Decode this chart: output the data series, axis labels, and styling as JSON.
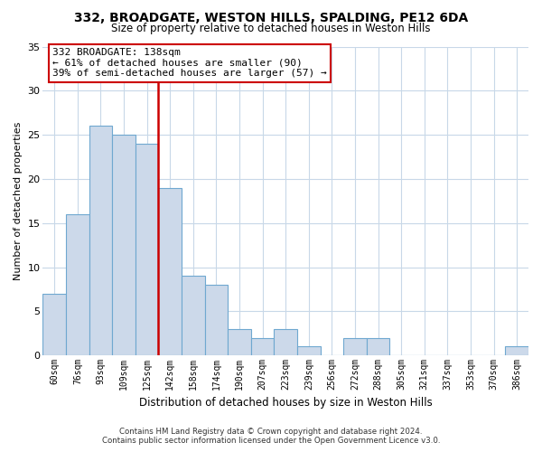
{
  "title1": "332, BROADGATE, WESTON HILLS, SPALDING, PE12 6DA",
  "title2": "Size of property relative to detached houses in Weston Hills",
  "xlabel": "Distribution of detached houses by size in Weston Hills",
  "ylabel": "Number of detached properties",
  "bin_labels": [
    "60sqm",
    "76sqm",
    "93sqm",
    "109sqm",
    "125sqm",
    "142sqm",
    "158sqm",
    "174sqm",
    "190sqm",
    "207sqm",
    "223sqm",
    "239sqm",
    "256sqm",
    "272sqm",
    "288sqm",
    "305sqm",
    "321sqm",
    "337sqm",
    "353sqm",
    "370sqm",
    "386sqm"
  ],
  "bar_heights": [
    7,
    16,
    26,
    25,
    24,
    19,
    9,
    8,
    3,
    2,
    3,
    1,
    0,
    2,
    2,
    0,
    0,
    0,
    0,
    0,
    1
  ],
  "bar_color": "#ccd9ea",
  "bar_edge_color": "#6fa8d0",
  "vline_color": "#cc0000",
  "ylim": [
    0,
    35
  ],
  "yticks": [
    0,
    5,
    10,
    15,
    20,
    25,
    30,
    35
  ],
  "annotation_title": "332 BROADGATE: 138sqm",
  "annotation_line1": "← 61% of detached houses are smaller (90)",
  "annotation_line2": "39% of semi-detached houses are larger (57) →",
  "annotation_box_color": "#ffffff",
  "annotation_box_edge": "#cc0000",
  "grid_color": "#c8d8e8",
  "footer1": "Contains HM Land Registry data © Crown copyright and database right 2024.",
  "footer2": "Contains public sector information licensed under the Open Government Licence v3.0."
}
